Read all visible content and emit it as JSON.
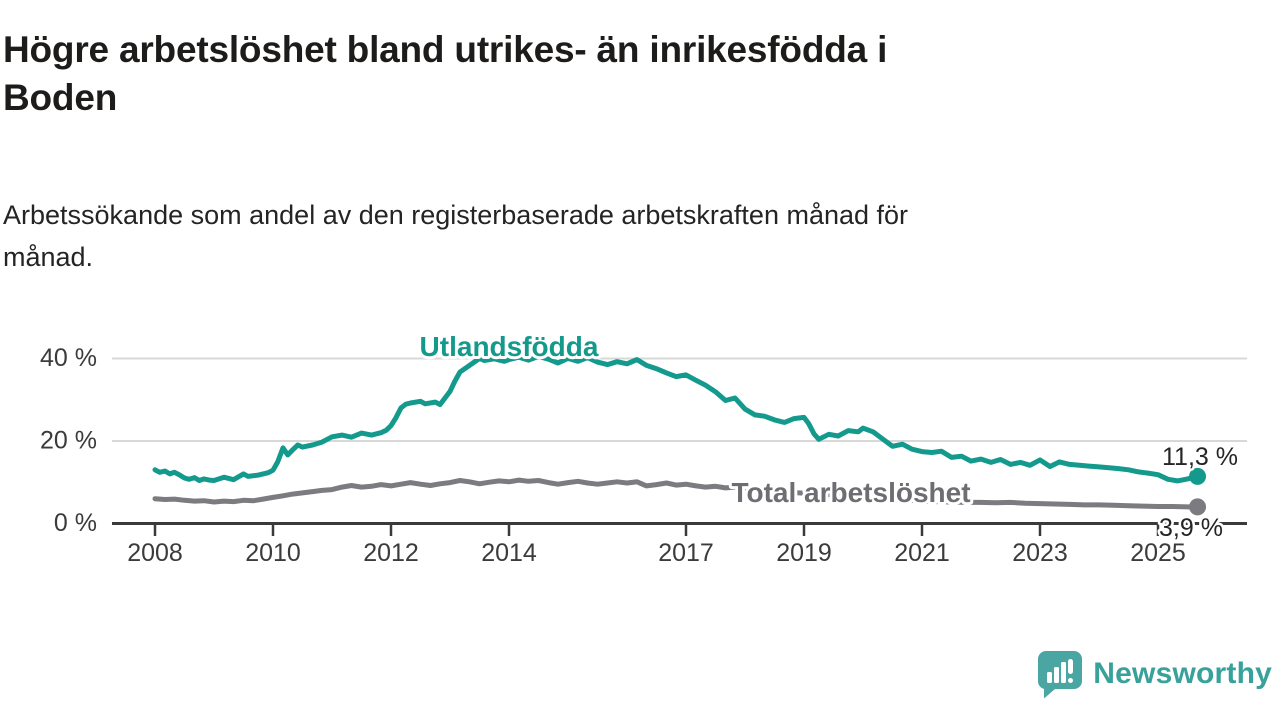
{
  "header": {
    "title": "Högre arbetslöshet bland utrikes- än inrikesfödda i\nBoden",
    "subtitle": "Arbetssökande som andel av den registerbaserade arbetskraften månad för\nmånad."
  },
  "footer": {
    "brand": "Newsworthy"
  },
  "colors": {
    "series_foreign": "#149a8d",
    "series_total": "#7b7b80",
    "label_total": "#6d6d72",
    "axis": "#3a3a3a",
    "gridline": "#d8d8d8",
    "tick_label": "#3b3b3b",
    "end_label": "#252525",
    "logo_icon": "#4aa6a2",
    "logo_text": "#38a19a"
  },
  "chart_data": {
    "type": "line",
    "title": "Högre arbetslöshet bland utrikes- än inrikesfödda i Boden",
    "subtitle": "Arbetssökande som andel av den registerbaserade arbetskraften månad för månad.",
    "xlabel": "",
    "ylabel": "",
    "grid": "horizontal",
    "x_axis": {
      "ticks": [
        2008,
        2010,
        2012,
        2014,
        2017,
        2019,
        2021,
        2023,
        2025
      ],
      "tick_labels": [
        "2008",
        "2010",
        "2012",
        "2014",
        "2017",
        "2019",
        "2021",
        "2023",
        "2025"
      ],
      "range": [
        2007.3,
        2026.5
      ]
    },
    "y_axis": {
      "ticks": [
        0,
        20,
        40
      ],
      "tick_labels": [
        "0 %",
        "20 %",
        "40 %"
      ],
      "range": [
        0,
        44
      ]
    },
    "series": [
      {
        "name": "Utlandsfödda",
        "end_label": "11,3 %",
        "end_value": 11.3,
        "points": [
          [
            2008.0,
            12.9
          ],
          [
            2008.08,
            12.3
          ],
          [
            2008.17,
            12.6
          ],
          [
            2008.25,
            11.9
          ],
          [
            2008.33,
            12.3
          ],
          [
            2008.42,
            11.6
          ],
          [
            2008.5,
            10.9
          ],
          [
            2008.58,
            10.6
          ],
          [
            2008.67,
            11.0
          ],
          [
            2008.75,
            10.3
          ],
          [
            2008.83,
            10.7
          ],
          [
            2008.92,
            10.4
          ],
          [
            2009.0,
            10.3
          ],
          [
            2009.17,
            11.1
          ],
          [
            2009.33,
            10.5
          ],
          [
            2009.5,
            11.9
          ],
          [
            2009.58,
            11.3
          ],
          [
            2009.75,
            11.6
          ],
          [
            2009.92,
            12.2
          ],
          [
            2010.0,
            12.8
          ],
          [
            2010.08,
            14.8
          ],
          [
            2010.17,
            18.2
          ],
          [
            2010.25,
            16.5
          ],
          [
            2010.33,
            17.7
          ],
          [
            2010.42,
            18.9
          ],
          [
            2010.5,
            18.4
          ],
          [
            2010.67,
            18.9
          ],
          [
            2010.83,
            19.6
          ],
          [
            2010.92,
            20.3
          ],
          [
            2011.0,
            20.9
          ],
          [
            2011.17,
            21.3
          ],
          [
            2011.33,
            20.8
          ],
          [
            2011.5,
            21.8
          ],
          [
            2011.67,
            21.3
          ],
          [
            2011.83,
            21.9
          ],
          [
            2011.92,
            22.5
          ],
          [
            2012.0,
            23.6
          ],
          [
            2012.08,
            25.4
          ],
          [
            2012.17,
            27.9
          ],
          [
            2012.25,
            28.8
          ],
          [
            2012.33,
            29.1
          ],
          [
            2012.5,
            29.5
          ],
          [
            2012.58,
            28.9
          ],
          [
            2012.75,
            29.3
          ],
          [
            2012.83,
            28.7
          ],
          [
            2013.0,
            31.9
          ],
          [
            2013.08,
            34.3
          ],
          [
            2013.17,
            36.6
          ],
          [
            2013.25,
            37.4
          ],
          [
            2013.33,
            38.2
          ],
          [
            2013.5,
            39.9
          ],
          [
            2013.58,
            39.4
          ],
          [
            2013.75,
            39.8
          ],
          [
            2013.92,
            39.2
          ],
          [
            2014.0,
            39.6
          ],
          [
            2014.17,
            40.2
          ],
          [
            2014.33,
            39.5
          ],
          [
            2014.5,
            40.4
          ],
          [
            2014.67,
            39.7
          ],
          [
            2014.83,
            38.8
          ],
          [
            2015.0,
            39.9
          ],
          [
            2015.17,
            39.2
          ],
          [
            2015.33,
            40.1
          ],
          [
            2015.5,
            39.0
          ],
          [
            2015.67,
            38.4
          ],
          [
            2015.83,
            39.1
          ],
          [
            2016.0,
            38.6
          ],
          [
            2016.17,
            39.6
          ],
          [
            2016.33,
            38.2
          ],
          [
            2016.5,
            37.4
          ],
          [
            2016.67,
            36.4
          ],
          [
            2016.83,
            35.5
          ],
          [
            2017.0,
            35.9
          ],
          [
            2017.17,
            34.6
          ],
          [
            2017.33,
            33.4
          ],
          [
            2017.5,
            31.8
          ],
          [
            2017.67,
            29.7
          ],
          [
            2017.83,
            30.3
          ],
          [
            2018.0,
            27.6
          ],
          [
            2018.17,
            26.2
          ],
          [
            2018.33,
            25.9
          ],
          [
            2018.5,
            25.0
          ],
          [
            2018.67,
            24.4
          ],
          [
            2018.83,
            25.3
          ],
          [
            2019.0,
            25.6
          ],
          [
            2019.08,
            24.1
          ],
          [
            2019.17,
            21.6
          ],
          [
            2019.25,
            20.3
          ],
          [
            2019.42,
            21.5
          ],
          [
            2019.58,
            21.1
          ],
          [
            2019.75,
            22.4
          ],
          [
            2019.92,
            22.1
          ],
          [
            2020.0,
            23.0
          ],
          [
            2020.17,
            22.1
          ],
          [
            2020.33,
            20.4
          ],
          [
            2020.5,
            18.6
          ],
          [
            2020.67,
            19.1
          ],
          [
            2020.83,
            17.9
          ],
          [
            2021.0,
            17.3
          ],
          [
            2021.17,
            17.1
          ],
          [
            2021.33,
            17.4
          ],
          [
            2021.5,
            15.9
          ],
          [
            2021.67,
            16.2
          ],
          [
            2021.83,
            15.0
          ],
          [
            2022.0,
            15.5
          ],
          [
            2022.17,
            14.7
          ],
          [
            2022.33,
            15.4
          ],
          [
            2022.5,
            14.2
          ],
          [
            2022.67,
            14.7
          ],
          [
            2022.83,
            14.0
          ],
          [
            2023.0,
            15.3
          ],
          [
            2023.17,
            13.7
          ],
          [
            2023.33,
            14.8
          ],
          [
            2023.5,
            14.2
          ],
          [
            2023.67,
            14.0
          ],
          [
            2023.83,
            13.8
          ],
          [
            2024.0,
            13.6
          ],
          [
            2024.17,
            13.4
          ],
          [
            2024.33,
            13.2
          ],
          [
            2024.5,
            12.9
          ],
          [
            2024.67,
            12.4
          ],
          [
            2024.83,
            12.1
          ],
          [
            2025.0,
            11.7
          ],
          [
            2025.17,
            10.6
          ],
          [
            2025.33,
            10.2
          ],
          [
            2025.5,
            10.7
          ],
          [
            2025.67,
            11.3
          ]
        ]
      },
      {
        "name": "Total arbetslöshet",
        "end_label": "3,9 %",
        "end_value": 3.9,
        "points": [
          [
            2008.0,
            5.9
          ],
          [
            2008.17,
            5.7
          ],
          [
            2008.33,
            5.8
          ],
          [
            2008.5,
            5.5
          ],
          [
            2008.67,
            5.3
          ],
          [
            2008.83,
            5.4
          ],
          [
            2009.0,
            5.1
          ],
          [
            2009.17,
            5.3
          ],
          [
            2009.33,
            5.2
          ],
          [
            2009.5,
            5.5
          ],
          [
            2009.67,
            5.4
          ],
          [
            2009.83,
            5.8
          ],
          [
            2010.0,
            6.2
          ],
          [
            2010.17,
            6.6
          ],
          [
            2010.33,
            7.0
          ],
          [
            2010.5,
            7.3
          ],
          [
            2010.67,
            7.6
          ],
          [
            2010.83,
            7.9
          ],
          [
            2011.0,
            8.1
          ],
          [
            2011.17,
            8.7
          ],
          [
            2011.33,
            9.1
          ],
          [
            2011.5,
            8.7
          ],
          [
            2011.67,
            8.9
          ],
          [
            2011.83,
            9.3
          ],
          [
            2012.0,
            9.0
          ],
          [
            2012.17,
            9.4
          ],
          [
            2012.33,
            9.8
          ],
          [
            2012.5,
            9.4
          ],
          [
            2012.67,
            9.1
          ],
          [
            2012.83,
            9.5
          ],
          [
            2013.0,
            9.8
          ],
          [
            2013.17,
            10.3
          ],
          [
            2013.33,
            10.0
          ],
          [
            2013.5,
            9.5
          ],
          [
            2013.67,
            9.9
          ],
          [
            2013.83,
            10.2
          ],
          [
            2014.0,
            10.0
          ],
          [
            2014.17,
            10.4
          ],
          [
            2014.33,
            10.1
          ],
          [
            2014.5,
            10.3
          ],
          [
            2014.67,
            9.8
          ],
          [
            2014.83,
            9.4
          ],
          [
            2015.0,
            9.8
          ],
          [
            2015.17,
            10.1
          ],
          [
            2015.33,
            9.7
          ],
          [
            2015.5,
            9.4
          ],
          [
            2015.67,
            9.7
          ],
          [
            2015.83,
            10.0
          ],
          [
            2016.0,
            9.7
          ],
          [
            2016.17,
            10.0
          ],
          [
            2016.33,
            9.0
          ],
          [
            2016.5,
            9.3
          ],
          [
            2016.67,
            9.7
          ],
          [
            2016.83,
            9.2
          ],
          [
            2017.0,
            9.4
          ],
          [
            2017.17,
            9.0
          ],
          [
            2017.33,
            8.7
          ],
          [
            2017.5,
            8.9
          ],
          [
            2017.67,
            8.5
          ],
          [
            2017.83,
            8.7
          ],
          [
            2018.0,
            8.3
          ],
          [
            2018.25,
            8.0
          ],
          [
            2018.5,
            7.7
          ],
          [
            2018.75,
            7.5
          ],
          [
            2019.0,
            7.2
          ],
          [
            2019.25,
            7.0
          ],
          [
            2019.5,
            6.8
          ],
          [
            2019.75,
            6.6
          ],
          [
            2020.0,
            6.4
          ],
          [
            2020.25,
            6.7
          ],
          [
            2020.5,
            6.2
          ],
          [
            2020.75,
            5.6
          ],
          [
            2021.0,
            5.3
          ],
          [
            2021.25,
            5.2
          ],
          [
            2021.5,
            5.1
          ],
          [
            2021.75,
            5.0
          ],
          [
            2022.0,
            5.0
          ],
          [
            2022.25,
            4.9
          ],
          [
            2022.5,
            5.0
          ],
          [
            2022.75,
            4.8
          ],
          [
            2023.0,
            4.7
          ],
          [
            2023.25,
            4.6
          ],
          [
            2023.5,
            4.5
          ],
          [
            2023.75,
            4.4
          ],
          [
            2024.0,
            4.4
          ],
          [
            2024.25,
            4.3
          ],
          [
            2024.5,
            4.2
          ],
          [
            2024.75,
            4.1
          ],
          [
            2025.0,
            4.0
          ],
          [
            2025.25,
            4.0
          ],
          [
            2025.5,
            3.9
          ],
          [
            2025.67,
            3.9
          ]
        ]
      }
    ],
    "legend_position": "inline-labels"
  }
}
